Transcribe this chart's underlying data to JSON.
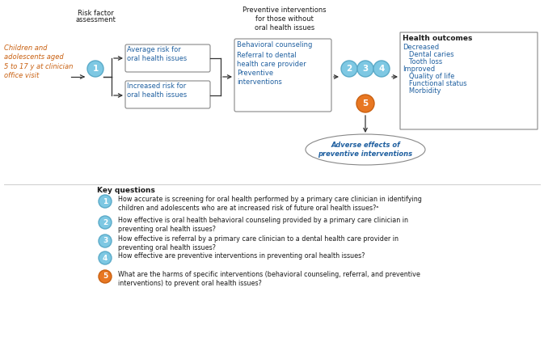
{
  "bg_color": "#ffffff",
  "blue_circle_color": "#7EC8E3",
  "blue_circle_edge": "#5AAAC8",
  "orange_circle_color": "#E87722",
  "orange_circle_edge": "#C96010",
  "box_edge_color": "#888888",
  "text_color": "#1a1a1a",
  "text_orange": "#C96010",
  "text_blue": "#2060A0",
  "arrow_color": "#333333",
  "population_text": "Children and\nadolescents aged\n5 to 17 y at clinician\noffice visit",
  "risk_label_line1": "Risk factor",
  "risk_label_line2": "assessment",
  "avg_risk_text": "Average risk for\noral health issues",
  "inc_risk_text": "Increased risk for\noral health issues",
  "prev_int_header": "Preventive interventions\nfor those without\noral health issues",
  "prev_int_line1": "Behavioral counseling",
  "prev_int_line2": "Referral to dental\nhealth care provider",
  "prev_int_line3": "Preventive\ninterventions",
  "outcomes_title": "Health outcomes",
  "outcomes_line1": "Decreased",
  "outcomes_line2": "   Dental caries",
  "outcomes_line3": "   Tooth loss",
  "outcomes_line4": "Improved",
  "outcomes_line5": "   Quality of life",
  "outcomes_line6": "   Functional status",
  "outcomes_line7": "   Morbidity",
  "adverse_text": "Adverse effects of\npreventive interventions",
  "kq_header": "Key questions",
  "kq1": "How accurate is screening for oral health performed by a primary care clinician in identifying\nchildren and adolescents who are at increased risk of future oral health issues?ᵃ",
  "kq2": "How effective is oral health behavioral counseling provided by a primary care clinician in\npreventing oral health issues?",
  "kq3": "How effective is referral by a primary care clinician to a dental health care provider in\npreventing oral health issues?",
  "kq4": "How effective are preventive interventions in preventing oral health issues?",
  "kq5": "What are the harms of specific interventions (behavioral counseling, referral, and preventive\ninterventions) to prevent oral health issues?"
}
